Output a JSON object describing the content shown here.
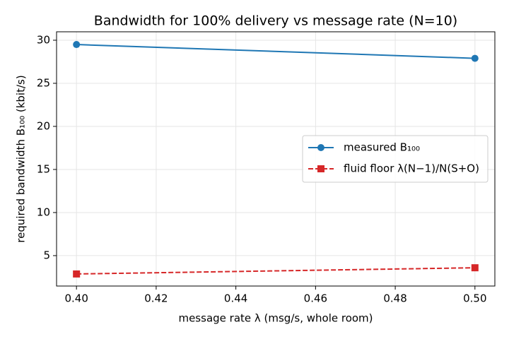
{
  "chart_data": {
    "type": "line",
    "title": "Bandwidth for 100% delivery vs message rate (N=10)",
    "x_label": "message rate λ (msg/s, whole room)",
    "y_label": "required bandwidth B₁₀₀ (kbit/s)",
    "x": [
      0.4,
      0.5
    ],
    "series": [
      {
        "name": "measured B₁₀₀",
        "color": "#1f77b4",
        "marker": "circle",
        "dash": false,
        "values": [
          29.5,
          27.9
        ]
      },
      {
        "name": "fluid floor λ(N−1)/N(S+O)",
        "color": "#d62728",
        "marker": "square",
        "dash": true,
        "values": [
          2.87,
          3.59
        ]
      }
    ],
    "xlim": [
      0.395,
      0.505
    ],
    "ylim": [
      1.47,
      30.98
    ],
    "xticks": [
      {
        "value": 0.4,
        "label": "0.40"
      },
      {
        "value": 0.42,
        "label": "0.42"
      },
      {
        "value": 0.44,
        "label": "0.44"
      },
      {
        "value": 0.46,
        "label": "0.46"
      },
      {
        "value": 0.48,
        "label": "0.48"
      },
      {
        "value": 0.5,
        "label": "0.50"
      }
    ],
    "yticks": [
      5,
      10,
      15,
      20,
      25,
      30
    ],
    "grid": true,
    "legend": "center right"
  }
}
